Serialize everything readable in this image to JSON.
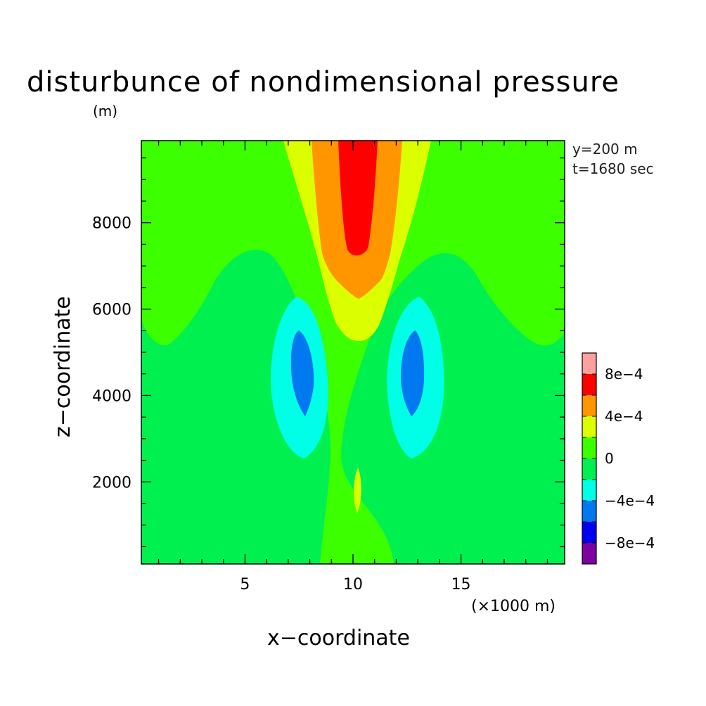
{
  "chart_data": {
    "type": "contour",
    "title": "disturbunce of nondimensional pressure",
    "xlabel": "x−coordinate",
    "ylabel": "z−coordinate",
    "x_unit_note": "(×1000 m)",
    "y_unit_note": "(m)",
    "annotations": [
      "y=200 m",
      "t=1680 sec"
    ],
    "xlim": [
      0.2,
      19.8
    ],
    "ylim": [
      100,
      9900
    ],
    "x_ticks": [
      5,
      10,
      15
    ],
    "y_ticks": [
      2000,
      4000,
      6000,
      8000
    ],
    "colorbar": {
      "levels": [
        -0.001,
        -0.0008,
        -0.0006,
        -0.0004,
        -0.0002,
        0,
        0.0002,
        0.0004,
        0.0006,
        0.0008,
        0.001
      ],
      "tick_labels": [
        "8e−4",
        "4e−4",
        "0",
        "−4e−4",
        "−8e−4"
      ],
      "tick_values": [
        0.0008,
        0.0004,
        0,
        -0.0004,
        -0.0008
      ],
      "colors": [
        "#7d00a0",
        "#0000f0",
        "#0078f0",
        "#00ffe6",
        "#00f050",
        "#3cff00",
        "#dcff00",
        "#ff9600",
        "#ff0000",
        "#ffa0a0"
      ]
    },
    "fields": {
      "background_lower": "#00f050",
      "background_upper": "#3cff00"
    }
  }
}
